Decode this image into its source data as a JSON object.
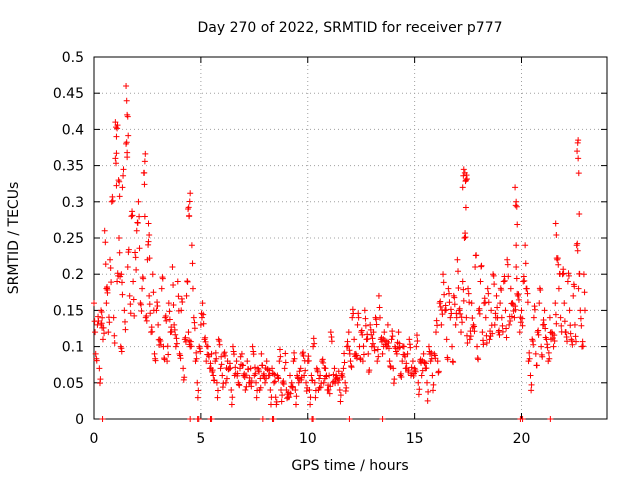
{
  "chart_data": {
    "type": "scatter",
    "title": "Day 270 of 2022, SRMTID for receiver p777",
    "xlabel": "GPS time / hours",
    "ylabel": "SRMTID / TECUs",
    "xlim": [
      0,
      24
    ],
    "ylim": [
      0,
      0.5
    ],
    "x_ticks": [
      0,
      5,
      10,
      15,
      20
    ],
    "x_tick_labels": [
      "0",
      "5",
      "10",
      "15",
      "20"
    ],
    "y_ticks": [
      0,
      0.05,
      0.1,
      0.15,
      0.2,
      0.25,
      0.3,
      0.35,
      0.4,
      0.45,
      0.5
    ],
    "y_tick_labels": [
      "0",
      "0.05",
      "0.1",
      "0.15",
      "0.2",
      "0.25",
      "0.3",
      "0.35",
      "0.4",
      "0.45",
      "0.5"
    ],
    "grid": true,
    "marker": "plus",
    "series_color": "#ff0000",
    "series": [
      {
        "name": "SRMTID",
        "x": [
          0.0,
          0.08,
          0.16,
          0.25,
          0.33,
          0.42,
          0.5,
          0.58,
          0.67,
          0.75,
          0.83,
          0.92,
          1.0,
          1.08,
          1.17,
          1.25,
          1.33,
          1.42,
          1.5,
          1.58,
          1.67,
          1.75,
          1.83,
          1.92,
          2.0,
          2.08,
          2.17,
          2.25,
          2.33,
          2.42,
          2.5,
          2.58,
          2.67,
          2.75,
          2.83,
          2.92,
          3.0,
          3.08,
          3.17,
          3.25,
          3.33,
          3.42,
          3.5,
          3.58,
          3.67,
          3.75,
          3.83,
          3.92,
          4.0,
          4.08,
          4.17,
          4.25,
          4.33,
          4.42,
          4.5,
          4.58,
          4.67,
          4.75,
          4.83,
          4.92,
          5.0,
          5.08,
          5.17,
          5.25,
          5.33,
          5.42,
          5.5,
          5.58,
          5.67,
          5.75,
          5.83,
          5.92,
          6.0,
          6.08,
          6.17,
          6.25,
          6.33,
          6.42,
          6.5,
          6.58,
          6.67,
          6.75,
          6.83,
          6.92,
          7.0,
          7.08,
          7.17,
          7.25,
          7.33,
          7.42,
          7.5,
          7.58,
          7.67,
          7.75,
          7.83,
          7.92,
          8.0,
          8.08,
          8.17,
          8.25,
          8.33,
          8.42,
          8.5,
          8.58,
          8.67,
          8.75,
          8.83,
          8.92,
          9.0,
          9.08,
          9.17,
          9.25,
          9.33,
          9.42,
          9.5,
          9.58,
          9.67,
          9.75,
          9.83,
          9.92,
          10.0,
          10.08,
          10.17,
          10.25,
          10.33,
          10.42,
          10.5,
          10.58,
          10.67,
          10.75,
          10.83,
          10.92,
          11.0,
          11.08,
          11.17,
          11.25,
          11.33,
          11.42,
          11.5,
          11.58,
          11.67,
          11.75,
          11.83,
          11.92,
          12.0,
          12.08,
          12.17,
          12.25,
          12.33,
          12.42,
          12.5,
          12.58,
          12.67,
          12.75,
          12.83,
          12.92,
          13.0,
          13.08,
          13.17,
          13.25,
          13.33,
          13.42,
          13.5,
          13.58,
          13.67,
          13.75,
          13.83,
          13.92,
          14.0,
          14.08,
          14.17,
          14.25,
          14.33,
          14.42,
          14.5,
          14.58,
          14.67,
          14.75,
          14.83,
          14.92,
          15.0,
          15.08,
          15.17,
          15.25,
          15.33,
          15.42,
          15.5,
          15.58,
          15.67,
          15.75,
          15.83,
          15.92,
          16.0,
          16.08,
          16.17,
          16.25,
          16.33,
          16.42,
          16.5,
          16.58,
          16.67,
          16.75,
          16.83,
          16.92,
          17.0,
          17.08,
          17.17,
          17.25,
          17.33,
          17.42,
          17.5,
          17.58,
          17.67,
          17.75,
          17.83,
          17.92,
          18.0,
          18.08,
          18.17,
          18.25,
          18.33,
          18.42,
          18.5,
          18.58,
          18.67,
          18.75,
          18.83,
          18.92,
          19.0,
          19.08,
          19.17,
          19.25,
          19.33,
          19.42,
          19.5,
          19.58,
          19.67,
          19.75,
          19.83,
          19.92,
          20.0,
          20.08,
          20.17,
          20.25,
          20.33,
          20.42,
          20.5,
          20.58,
          20.67,
          20.75,
          20.83,
          20.92,
          21.0,
          21.08,
          21.17,
          21.25,
          21.33,
          21.42,
          21.5,
          21.58,
          21.67,
          21.75,
          21.83,
          21.92,
          22.0,
          22.08,
          22.17,
          22.25,
          22.33,
          22.42,
          22.5,
          22.58,
          22.67,
          22.75,
          22.83,
          22.92,
          1.0,
          1.05,
          1.5,
          1.55,
          2.35,
          2.55,
          4.4,
          4.45,
          17.35,
          17.4,
          19.7,
          19.75,
          22.6,
          22.65,
          1.15,
          17.25,
          21.6,
          0.33,
          0.58,
          1.28
        ],
        "y": [
          0.16,
          0.09,
          0.13,
          0.07,
          0.15,
          0.11,
          0.26,
          0.18,
          0.12,
          0.22,
          0.3,
          0.14,
          0.36,
          0.19,
          0.25,
          0.1,
          0.32,
          0.15,
          0.38,
          0.21,
          0.17,
          0.28,
          0.19,
          0.23,
          0.26,
          0.3,
          0.16,
          0.18,
          0.34,
          0.14,
          0.22,
          0.17,
          0.12,
          0.2,
          0.09,
          0.15,
          0.13,
          0.11,
          0.18,
          0.1,
          0.14,
          0.08,
          0.16,
          0.12,
          0.21,
          0.13,
          0.1,
          0.19,
          0.09,
          0.15,
          0.07,
          0.11,
          0.17,
          0.12,
          0.1,
          0.24,
          0.14,
          0.08,
          0.05,
          0.1,
          0.13,
          0.16,
          0.11,
          0.08,
          0.1,
          0.07,
          0.09,
          0.06,
          0.08,
          0.05,
          0.11,
          0.07,
          0.06,
          0.09,
          0.05,
          0.08,
          0.07,
          0.04,
          0.1,
          0.06,
          0.08,
          0.05,
          0.07,
          0.09,
          0.06,
          0.04,
          0.08,
          0.05,
          0.07,
          0.1,
          0.06,
          0.05,
          0.07,
          0.04,
          0.09,
          0.06,
          0.05,
          0.08,
          0.06,
          0.04,
          0.07,
          0.05,
          0.03,
          0.06,
          0.08,
          0.04,
          0.05,
          0.07,
          0.04,
          0.03,
          0.06,
          0.05,
          0.08,
          0.04,
          0.06,
          0.05,
          0.07,
          0.09,
          0.06,
          0.05,
          0.08,
          0.04,
          0.06,
          0.1,
          0.05,
          0.07,
          0.04,
          0.06,
          0.08,
          0.05,
          0.07,
          0.04,
          0.06,
          0.12,
          0.05,
          0.07,
          0.06,
          0.05,
          0.04,
          0.06,
          0.07,
          0.05,
          0.1,
          0.12,
          0.08,
          0.14,
          0.11,
          0.09,
          0.13,
          0.1,
          0.12,
          0.08,
          0.15,
          0.11,
          0.09,
          0.13,
          0.1,
          0.12,
          0.14,
          0.08,
          0.17,
          0.11,
          0.09,
          0.12,
          0.1,
          0.13,
          0.08,
          0.11,
          0.07,
          0.1,
          0.09,
          0.12,
          0.06,
          0.08,
          0.1,
          0.07,
          0.09,
          0.11,
          0.06,
          0.08,
          0.07,
          0.1,
          0.05,
          0.08,
          0.06,
          0.09,
          0.07,
          0.05,
          0.1,
          0.08,
          0.06,
          0.09,
          0.12,
          0.08,
          0.16,
          0.13,
          0.2,
          0.15,
          0.11,
          0.18,
          0.14,
          0.1,
          0.17,
          0.13,
          0.22,
          0.15,
          0.12,
          0.19,
          0.25,
          0.14,
          0.18,
          0.11,
          0.16,
          0.13,
          0.21,
          0.1,
          0.15,
          0.19,
          0.12,
          0.16,
          0.14,
          0.18,
          0.11,
          0.15,
          0.2,
          0.13,
          0.17,
          0.12,
          0.16,
          0.14,
          0.19,
          0.15,
          0.22,
          0.13,
          0.18,
          0.16,
          0.14,
          0.21,
          0.17,
          0.12,
          0.15,
          0.19,
          0.24,
          0.18,
          0.08,
          0.06,
          0.11,
          0.14,
          0.09,
          0.12,
          0.16,
          0.1,
          0.13,
          0.15,
          0.11,
          0.08,
          0.14,
          0.12,
          0.1,
          0.16,
          0.22,
          0.18,
          0.14,
          0.2,
          0.16,
          0.12,
          0.19,
          0.15,
          0.11,
          0.17,
          0.13,
          0.24,
          0.18,
          0.15,
          0.1,
          0.2,
          0.41,
          0.39,
          0.46,
          0.42,
          0.34,
          0.27,
          0.29,
          0.28,
          0.34,
          0.33,
          0.32,
          0.3,
          0.37,
          0.36,
          0.33,
          0.32,
          0.27,
          0.13,
          0.16,
          0.2
        ]
      }
    ],
    "zero_points_x": [
      0.4,
      4.5,
      4.85,
      4.9,
      5.45,
      5.5,
      7.9,
      8.35,
      8.4,
      10.2,
      10.25,
      11.95,
      13.5,
      19.95,
      20.05,
      21.35
    ]
  }
}
